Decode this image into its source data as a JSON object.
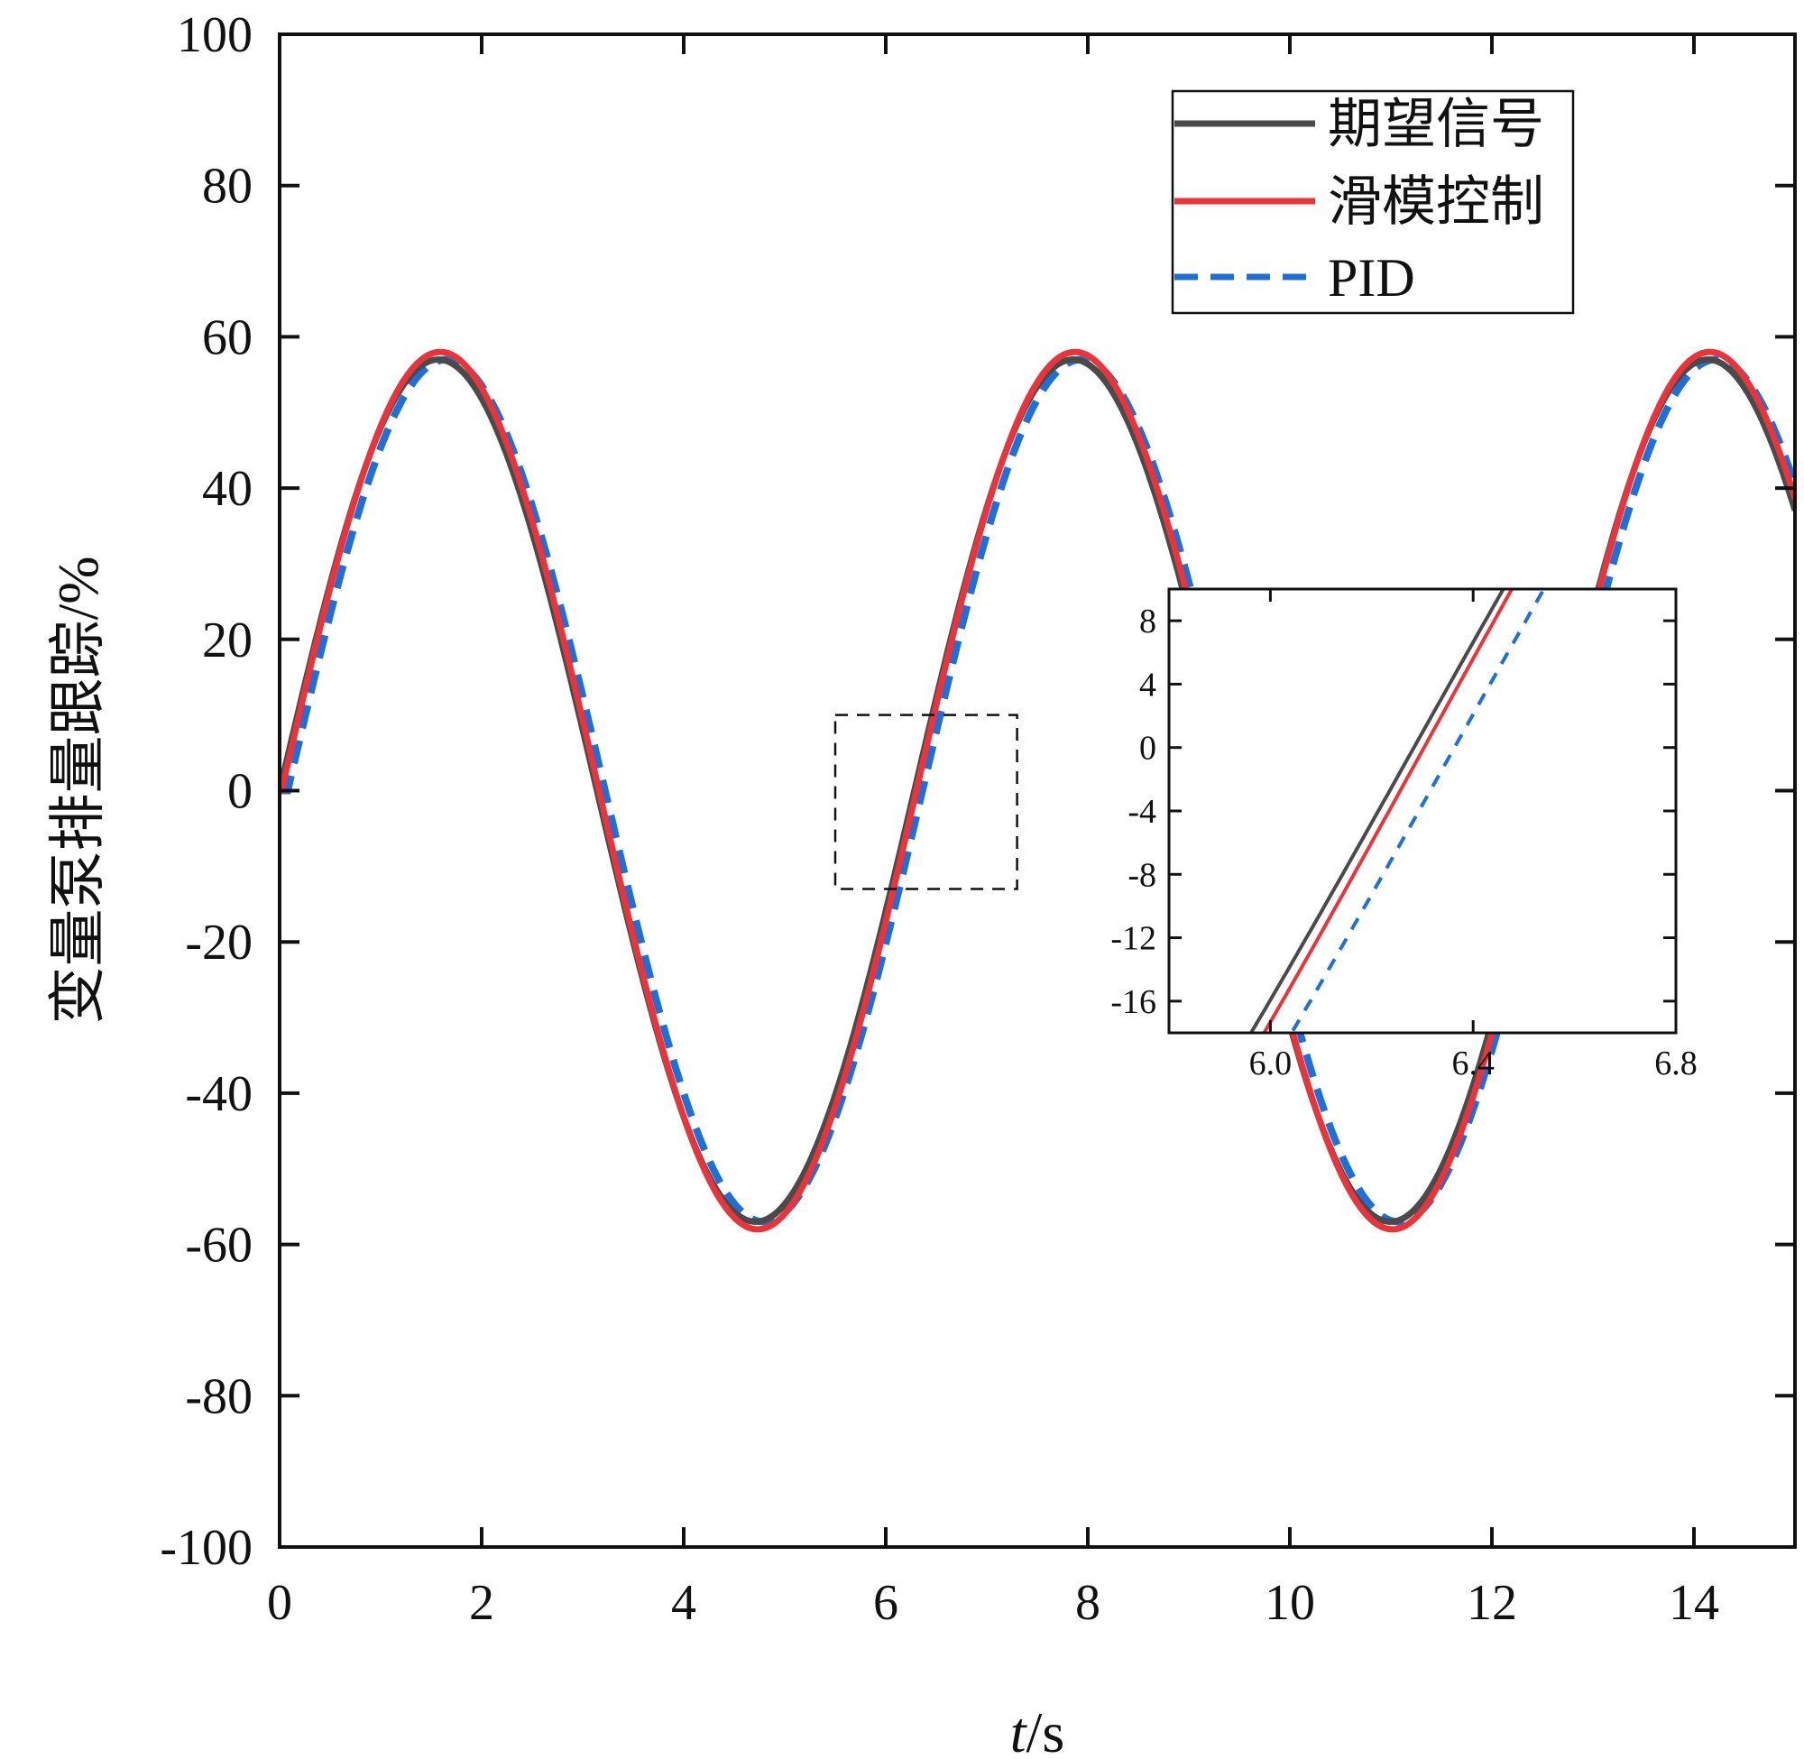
{
  "chart_data": {
    "type": "line",
    "title": "",
    "xlabel_italic": "t",
    "xlabel_rest": "/s",
    "ylabel": "变量泵排量跟踪/%",
    "xlim": [
      0,
      15
    ],
    "ylim": [
      -100,
      100
    ],
    "xticks": [
      0,
      2,
      4,
      6,
      8,
      10,
      12,
      14
    ],
    "xtick_labels": [
      "0",
      "2",
      "4",
      "6",
      "8",
      "10",
      "12",
      "14"
    ],
    "yticks": [
      -100,
      -80,
      -60,
      -40,
      -20,
      0,
      20,
      40,
      60,
      80,
      100
    ],
    "ytick_labels": [
      "-100",
      "-80",
      "-60",
      "-40",
      "-20",
      "0",
      "20",
      "40",
      "60",
      "80",
      "100"
    ],
    "grid": false,
    "legend_position": "top-right",
    "series": [
      {
        "name": "期望信号",
        "color": "#4a4a4a",
        "style": "solid",
        "x": [
          0.0,
          0.5,
          1.0,
          1.5,
          2.0,
          2.5,
          3.0,
          3.5,
          4.0,
          4.5,
          5.0,
          5.5,
          6.0,
          6.5,
          7.0,
          7.5,
          8.0,
          8.5,
          9.0,
          9.5,
          10.0,
          10.5,
          11.0,
          11.5,
          12.0,
          12.5,
          13.0,
          13.5,
          14.0,
          14.5,
          15.0
        ],
        "y": [
          0.0,
          27.3,
          48.0,
          57.0,
          52.0,
          34.1,
          8.0,
          -20.0,
          -43.2,
          -56.2,
          -54.7,
          -40.1,
          -15.9,
          12.2,
          37.4,
          54.0,
          56.9,
          45.3,
          23.5,
          -4.0,
          -31.0,
          -50.9,
          -57.0,
          -49.2,
          -30.6,
          -3.8,
          23.7,
          45.4,
          56.9,
          53.9,
          37.5
        ],
        "draw_step": 0.02,
        "lag": 0.0,
        "amp": 57,
        "omega": 1.0
      },
      {
        "name": "滑模控制",
        "color": "#e8343a",
        "style": "solid",
        "x": [
          0.0,
          0.5,
          1.0,
          1.5,
          2.0,
          2.5,
          3.0,
          3.5,
          4.0,
          4.5,
          5.0,
          5.5,
          6.0,
          6.5,
          7.0,
          7.5,
          8.0,
          8.5,
          9.0,
          9.5,
          10.0,
          10.5,
          11.0,
          11.5,
          12.0,
          12.5,
          13.0,
          13.5,
          14.0,
          14.5,
          15.0
        ],
        "y": [
          0.0,
          27.0,
          47.7,
          57.9,
          53.3,
          35.8,
          9.5,
          -19.1,
          -42.9,
          -56.6,
          -56.0,
          -41.9,
          -17.3,
          11.0,
          36.9,
          54.3,
          57.9,
          46.6,
          24.7,
          -3.1,
          -30.3,
          -51.2,
          -58.0,
          -50.6,
          -32.1,
          -5.4,
          22.2,
          45.1,
          57.6,
          55.4,
          39.2
        ],
        "draw_step": 0.02,
        "lag": 0.02,
        "amp": 58,
        "omega": 1.0
      },
      {
        "name": "PID",
        "color": "#1f6fd6",
        "style": "dashed",
        "x": [
          0.0,
          0.5,
          1.0,
          1.5,
          2.0,
          2.5,
          3.0,
          3.5,
          4.0,
          4.5,
          5.0,
          5.5,
          6.0,
          6.5,
          7.0,
          7.5,
          8.0,
          8.5,
          9.0,
          9.5,
          10.0,
          10.5,
          11.0,
          11.5,
          12.0,
          12.5,
          13.0,
          13.5,
          14.0,
          14.5,
          15.0
        ],
        "y": [
          0.0,
          23.0,
          45.4,
          57.0,
          54.0,
          38.5,
          13.5,
          -15.1,
          -39.8,
          -55.0,
          -56.0,
          -44.0,
          -21.3,
          6.9,
          33.3,
          52.3,
          57.0,
          48.7,
          28.0,
          0.2,
          -27.4,
          -49.4,
          -57.0,
          -51.7,
          -34.1,
          -8.1,
          19.4,
          42.8,
          56.4,
          55.6,
          41.5
        ],
        "draw_step": 0.02,
        "lag": 0.08,
        "amp": 57,
        "omega": 1.0
      }
    ],
    "zoom_box": {
      "x": [
        5.5,
        7.3
      ],
      "y": [
        -13,
        10
      ]
    },
    "inset": {
      "xlim": [
        5.8,
        6.8
      ],
      "ylim": [
        -18,
        10
      ],
      "xticks": [
        6.0,
        6.4,
        6.8
      ],
      "xtick_labels": [
        "6.0",
        "6.4",
        "6.8"
      ],
      "yticks": [
        -16,
        -12,
        -8,
        -4,
        0,
        4,
        8
      ],
      "ytick_labels": [
        "-16",
        "-12",
        "-8",
        "-4",
        "0",
        "4",
        "8"
      ]
    }
  }
}
